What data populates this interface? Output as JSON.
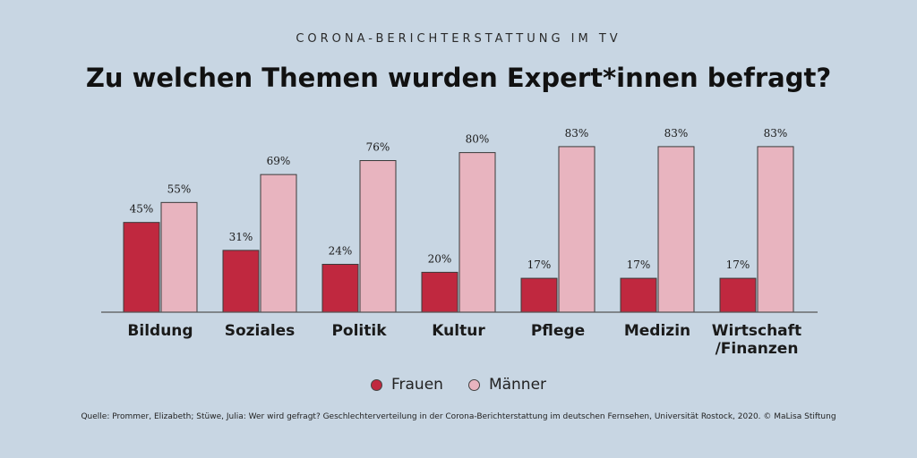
{
  "header": {
    "subtitle": "CORONA-BERICHTERSTATTUNG IM TV",
    "title": "Zu welchen Themen wurden Expert*innen befragt?"
  },
  "colors": {
    "background": "#c8d6e3",
    "frauen": "#c0283f",
    "maenner": "#e8b4bf",
    "axis": "#555555"
  },
  "legend": {
    "frauen": "Frauen",
    "maenner": "Männer"
  },
  "source": "Quelle: Prommer, Elizabeth; Stüwe, Julia: Wer wird gefragt? Geschlechterverteilung in der Corona-Berichterstattung im deutschen Fernsehen, Universität Rostock, 2020. © MaLisa Stiftung",
  "chart_data": {
    "type": "bar",
    "title": "Zu welchen Themen wurden Expert*innen befragt?",
    "categories": [
      [
        "Bildung"
      ],
      [
        "Soziales"
      ],
      [
        "Politik"
      ],
      [
        "Kultur"
      ],
      [
        "Pflege"
      ],
      [
        "Medizin"
      ],
      [
        "Wirtschaft",
        "/Finanzen"
      ]
    ],
    "series": [
      {
        "name": "Frauen",
        "values": [
          45,
          31,
          24,
          20,
          17,
          17,
          17
        ],
        "labels": [
          "45%",
          "31%",
          "24%",
          "20%",
          "17%",
          "17%",
          "17%"
        ]
      },
      {
        "name": "Männer",
        "values": [
          55,
          69,
          76,
          80,
          83,
          83,
          83
        ],
        "labels": [
          "55%",
          "69%",
          "76%",
          "80%",
          "83%",
          "83%",
          "83%"
        ]
      }
    ],
    "ylim": [
      0,
      100
    ],
    "grid": false,
    "legend_position": "bottom"
  }
}
